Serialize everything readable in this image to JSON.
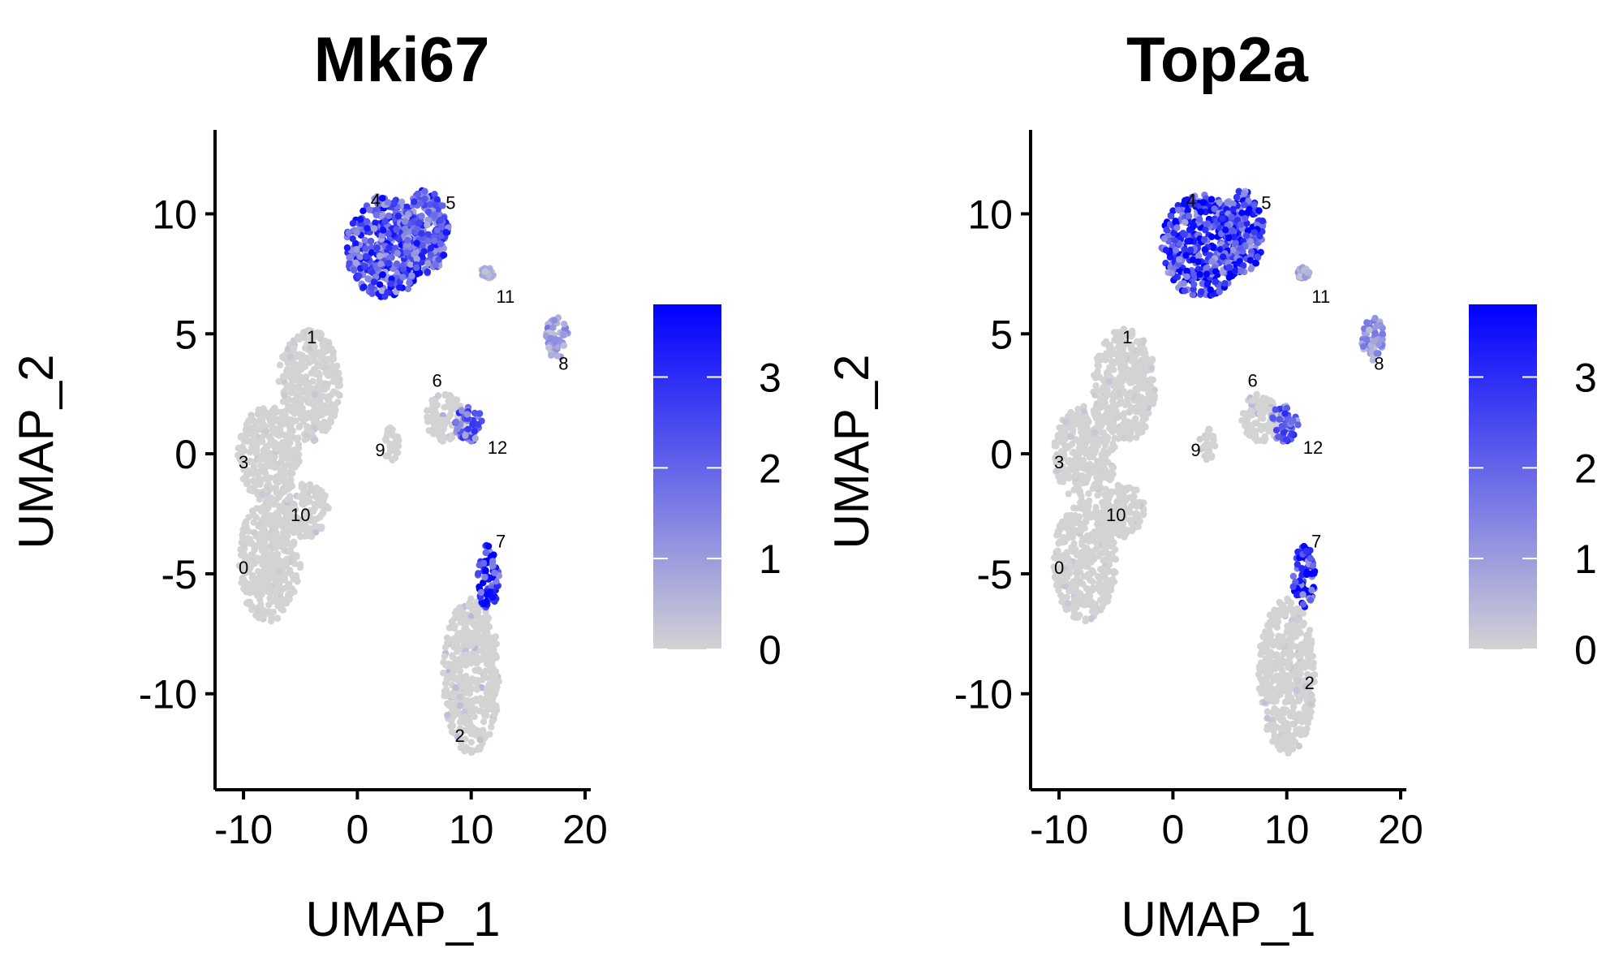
{
  "chart_data": [
    {
      "type": "scatter",
      "title": "Mki67",
      "xlabel": "UMAP_1",
      "ylabel": "UMAP_2",
      "xlim": [
        -12.5,
        20.5
      ],
      "ylim": [
        -14,
        13.5
      ],
      "xticks": [
        -10,
        0,
        10,
        20
      ],
      "yticks": [
        -10,
        -5,
        0,
        5,
        10
      ],
      "xtick_labels": [
        "-10",
        "0",
        "10",
        "20"
      ],
      "ytick_labels": [
        "-10",
        "-5",
        "0",
        "5",
        "10"
      ],
      "colorbar": {
        "min": 0,
        "max": 3.8,
        "ticks": [
          0,
          1,
          2,
          3
        ],
        "tick_labels": [
          "0",
          "1",
          "2",
          "3"
        ],
        "low_color": "#d3d3d3",
        "high_color": "#0000ff"
      },
      "cluster_labels": [
        {
          "label": "0",
          "x": -10,
          "y": -5
        },
        {
          "label": "1",
          "x": -4,
          "y": 4.6
        },
        {
          "label": "2",
          "x": 9,
          "y": -12
        },
        {
          "label": "3",
          "x": -10,
          "y": -0.6
        },
        {
          "label": "4",
          "x": 1.6,
          "y": 10.3
        },
        {
          "label": "5",
          "x": 8.2,
          "y": 10.2
        },
        {
          "label": "6",
          "x": 7,
          "y": 2.8
        },
        {
          "label": "7",
          "x": 12.6,
          "y": -3.9
        },
        {
          "label": "8",
          "x": 18.1,
          "y": 3.5
        },
        {
          "label": "9",
          "x": 2,
          "y": -0.1
        },
        {
          "label": "10",
          "x": -5,
          "y": -2.8
        },
        {
          "label": "11",
          "x": 13,
          "y": 6.3
        },
        {
          "label": "12",
          "x": 12.3,
          "y": 0
        }
      ],
      "point_summary": [
        {
          "cluster": "0",
          "x_range": [
            -10.5,
            -5
          ],
          "y_range": [
            -7,
            -2
          ],
          "expression": 0.1
        },
        {
          "cluster": "1",
          "x_range": [
            -7,
            -1.5
          ],
          "y_range": [
            0.5,
            5.2
          ],
          "expression": 0.15
        },
        {
          "cluster": "2",
          "x_range": [
            7.5,
            12.5
          ],
          "y_range": [
            -12.5,
            -6
          ],
          "expression": 0.3
        },
        {
          "cluster": "3",
          "x_range": [
            -10.5,
            -5
          ],
          "y_range": [
            -2,
            2
          ],
          "expression": 0.1
        },
        {
          "cluster": "4",
          "x_range": [
            -1,
            6
          ],
          "y_range": [
            6.5,
            10.8
          ],
          "expression": 2.3
        },
        {
          "cluster": "5",
          "x_range": [
            4,
            8
          ],
          "y_range": [
            7.5,
            11
          ],
          "expression": 2.1
        },
        {
          "cluster": "6",
          "x_range": [
            6,
            9.5
          ],
          "y_range": [
            0.5,
            2.5
          ],
          "expression": 0.4
        },
        {
          "cluster": "7",
          "x_range": [
            10.5,
            12.5
          ],
          "y_range": [
            -6.5,
            -3.8
          ],
          "expression": 2.8
        },
        {
          "cluster": "8",
          "x_range": [
            16.5,
            18.5
          ],
          "y_range": [
            3.9,
            5.8
          ],
          "expression": 1.0
        },
        {
          "cluster": "9",
          "x_range": [
            2.3,
            3.7
          ],
          "y_range": [
            -0.3,
            1.1
          ],
          "expression": 0.1
        },
        {
          "cluster": "10",
          "x_range": [
            -6.5,
            -2.5
          ],
          "y_range": [
            -3.5,
            -1.2
          ],
          "expression": 0.2
        },
        {
          "cluster": "11",
          "x_range": [
            10.8,
            12
          ],
          "y_range": [
            7.3,
            7.8
          ],
          "expression": 0.6
        },
        {
          "cluster": "12",
          "x_range": [
            8.5,
            11
          ],
          "y_range": [
            0.5,
            2
          ],
          "expression": 1.8
        }
      ]
    },
    {
      "type": "scatter",
      "title": "Top2a",
      "xlabel": "UMAP_1",
      "ylabel": "UMAP_2",
      "xlim": [
        -12.5,
        20.5
      ],
      "ylim": [
        -14,
        13.5
      ],
      "xticks": [
        -10,
        0,
        10,
        20
      ],
      "yticks": [
        -10,
        -5,
        0,
        5,
        10
      ],
      "xtick_labels": [
        "-10",
        "0",
        "10",
        "20"
      ],
      "ytick_labels": [
        "-10",
        "-5",
        "0",
        "5",
        "10"
      ],
      "colorbar": {
        "min": 0,
        "max": 3.8,
        "ticks": [
          0,
          1,
          2,
          3
        ],
        "tick_labels": [
          "0",
          "1",
          "2",
          "3"
        ],
        "low_color": "#d3d3d3",
        "high_color": "#0000ff"
      },
      "cluster_labels": [
        {
          "label": "0",
          "x": -10,
          "y": -5
        },
        {
          "label": "1",
          "x": -4,
          "y": 4.6
        },
        {
          "label": "2",
          "x": 12,
          "y": -9.8
        },
        {
          "label": "3",
          "x": -10,
          "y": -0.6
        },
        {
          "label": "4",
          "x": 1.6,
          "y": 10.3
        },
        {
          "label": "5",
          "x": 8.2,
          "y": 10.2
        },
        {
          "label": "6",
          "x": 7,
          "y": 2.8
        },
        {
          "label": "7",
          "x": 12.6,
          "y": -3.9
        },
        {
          "label": "8",
          "x": 18.1,
          "y": 3.5
        },
        {
          "label": "9",
          "x": 2,
          "y": -0.1
        },
        {
          "label": "10",
          "x": -5,
          "y": -2.8
        },
        {
          "label": "11",
          "x": 13,
          "y": 6.3
        },
        {
          "label": "12",
          "x": 12.3,
          "y": 0
        }
      ],
      "point_summary": [
        {
          "cluster": "0",
          "x_range": [
            -10.5,
            -5
          ],
          "y_range": [
            -7,
            -2
          ],
          "expression": 0.15
        },
        {
          "cluster": "1",
          "x_range": [
            -7,
            -1.5
          ],
          "y_range": [
            0.5,
            5.2
          ],
          "expression": 0.15
        },
        {
          "cluster": "2",
          "x_range": [
            7.5,
            12.5
          ],
          "y_range": [
            -12.5,
            -6
          ],
          "expression": 0.2
        },
        {
          "cluster": "3",
          "x_range": [
            -10.5,
            -5
          ],
          "y_range": [
            -2,
            2
          ],
          "expression": 0.15
        },
        {
          "cluster": "4",
          "x_range": [
            -1,
            6
          ],
          "y_range": [
            6.5,
            10.8
          ],
          "expression": 2.7
        },
        {
          "cluster": "5",
          "x_range": [
            4,
            8
          ],
          "y_range": [
            7.5,
            11
          ],
          "expression": 2.5
        },
        {
          "cluster": "6",
          "x_range": [
            6,
            9.5
          ],
          "y_range": [
            0.5,
            2.5
          ],
          "expression": 0.4
        },
        {
          "cluster": "7",
          "x_range": [
            10.5,
            12.5
          ],
          "y_range": [
            -6.5,
            -3.8
          ],
          "expression": 3.2
        },
        {
          "cluster": "8",
          "x_range": [
            16.5,
            18.5
          ],
          "y_range": [
            3.9,
            5.8
          ],
          "expression": 1.1
        },
        {
          "cluster": "9",
          "x_range": [
            2.3,
            3.7
          ],
          "y_range": [
            -0.3,
            1.1
          ],
          "expression": 0.1
        },
        {
          "cluster": "10",
          "x_range": [
            -6.5,
            -2.5
          ],
          "y_range": [
            -3.5,
            -1.2
          ],
          "expression": 0.2
        },
        {
          "cluster": "11",
          "x_range": [
            10.8,
            12
          ],
          "y_range": [
            7.3,
            7.8
          ],
          "expression": 0.7
        },
        {
          "cluster": "12",
          "x_range": [
            8.5,
            11
          ],
          "y_range": [
            0.5,
            2
          ],
          "expression": 2.0
        }
      ]
    }
  ]
}
